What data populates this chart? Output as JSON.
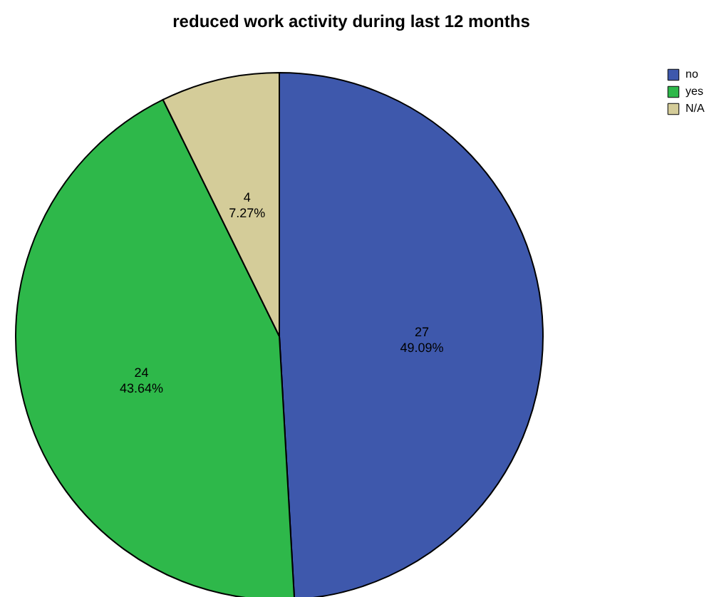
{
  "chart_data": {
    "type": "pie",
    "title": "reduced work activity during last 12 months",
    "categories": [
      "no",
      "yes",
      "N/A"
    ],
    "values": [
      27,
      24,
      4
    ],
    "colors": [
      "#3e58ac",
      "#2eb84a",
      "#d4cc99"
    ],
    "value_labels": [
      "27\n49.09%",
      "24\n43.64%",
      "4\n7.27%"
    ],
    "legend": "top right"
  }
}
